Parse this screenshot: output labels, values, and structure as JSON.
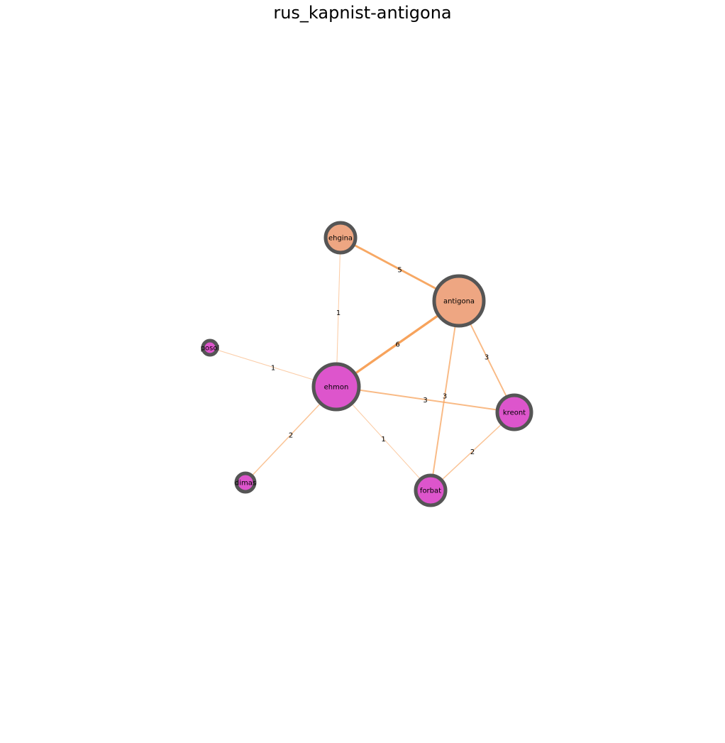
{
  "title": "rus_kapnist-antigona",
  "colors": {
    "edge": "#f7a35c",
    "node_border": "#555555",
    "female_node": "#eea682",
    "male_node": "#dd55cc"
  },
  "nodes": [
    {
      "id": "ehgina",
      "label": "ehgina",
      "color": "#eea682"
    },
    {
      "id": "antigona",
      "label": "antigona",
      "color": "#eea682"
    },
    {
      "id": "posol",
      "label": "posol",
      "color": "#dd55cc"
    },
    {
      "id": "ehmon",
      "label": "ehmon",
      "color": "#dd55cc"
    },
    {
      "id": "kreont",
      "label": "kreont",
      "color": "#dd55cc"
    },
    {
      "id": "dimas",
      "label": "dimas",
      "color": "#dd55cc"
    },
    {
      "id": "forbat",
      "label": "forbat",
      "color": "#dd55cc"
    }
  ],
  "edges": [
    {
      "source": "ehgina",
      "target": "antigona",
      "weight": 5
    },
    {
      "source": "ehgina",
      "target": "ehmon",
      "weight": 1
    },
    {
      "source": "antigona",
      "target": "ehmon",
      "weight": 6
    },
    {
      "source": "antigona",
      "target": "kreont",
      "weight": 3
    },
    {
      "source": "antigona",
      "target": "forbat",
      "weight": 3
    },
    {
      "source": "posol",
      "target": "ehmon",
      "weight": 1
    },
    {
      "source": "ehmon",
      "target": "kreont",
      "weight": 3
    },
    {
      "source": "ehmon",
      "target": "dimas",
      "weight": 2
    },
    {
      "source": "ehmon",
      "target": "forbat",
      "weight": 1
    },
    {
      "source": "kreont",
      "target": "forbat",
      "weight": 2
    }
  ]
}
